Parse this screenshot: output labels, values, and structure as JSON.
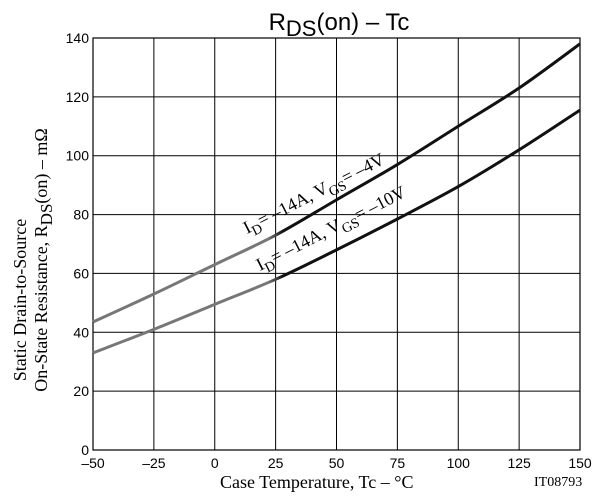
{
  "chart_data": {
    "type": "line",
    "title": "RDS(on)  –  Tc",
    "title_main": "R",
    "title_sub": "DS",
    "title_rest": "(on)  –  Tc",
    "ylabel_line1": "Static Drain-to-Source",
    "ylabel_line2_pre": "On-State Resistance, R",
    "ylabel_line2_sub": "DS",
    "ylabel_line2_post": "(on)  –  mΩ",
    "xlabel": "Case Temperature, Tc  –  °C",
    "figure_id": "IT08793",
    "xlim": [
      -50,
      150
    ],
    "ylim": [
      0,
      140
    ],
    "x_ticks": [
      "–50",
      "–25",
      "0",
      "25",
      "50",
      "75",
      "100",
      "125",
      "150"
    ],
    "y_ticks": [
      "0",
      "20",
      "40",
      "60",
      "80",
      "100",
      "120",
      "140"
    ],
    "grid": true,
    "series": [
      {
        "label_pre": "I",
        "label_sub1": "D",
        "label_mid": "= –14A, V",
        "label_sub2": "GS",
        "label_post": "= –4V",
        "color": "#111111",
        "color_low": "#777777",
        "x": [
          -50,
          -25,
          0,
          25,
          50,
          75,
          100,
          125,
          150
        ],
        "y": [
          43.5,
          53,
          63,
          73,
          85,
          97,
          110,
          123,
          138
        ]
      },
      {
        "label_pre": "I",
        "label_sub1": "D",
        "label_mid": "= –14A, V",
        "label_sub2": "GS",
        "label_post": "= –10V",
        "color": "#111111",
        "color_low": "#777777",
        "x": [
          -50,
          -25,
          0,
          25,
          50,
          75,
          100,
          125,
          150
        ],
        "y": [
          33,
          41,
          49.5,
          58,
          68,
          78.5,
          89.5,
          102,
          115.5
        ]
      }
    ]
  }
}
